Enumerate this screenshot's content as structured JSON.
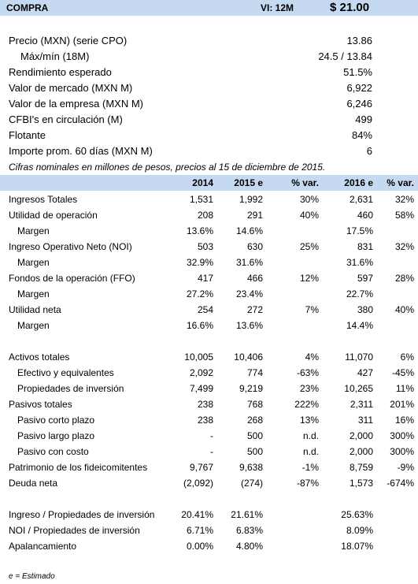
{
  "header": {
    "rating": "COMPRA",
    "vi_label": "VI: 12M",
    "target_price": "$ 21.00"
  },
  "summary": [
    {
      "label": "Precio (MXN) (serie CPO)",
      "value": "13.86",
      "indent": false
    },
    {
      "label": "Máx/mín (18M)",
      "value": "24.5 / 13.84",
      "indent": true
    },
    {
      "label": "Rendimiento esperado",
      "value": "51.5%",
      "indent": false
    },
    {
      "label": "Valor de mercado (MXN M)",
      "value": "6,922",
      "indent": false
    },
    {
      "label": "Valor de la empresa (MXN M)",
      "value": "6,246",
      "indent": false
    },
    {
      "label": "CFBI's en circulación (M)",
      "value": "499",
      "indent": false
    },
    {
      "label": "Flotante",
      "value": "84%",
      "indent": false
    },
    {
      "label": "Importe prom. 60 días (MXN M)",
      "value": "6",
      "indent": false
    }
  ],
  "note": "Cifras nominales en millones de pesos, precios al 15 de diciembre de 2015.",
  "table": {
    "headers": [
      "2014",
      "2015 e",
      "% var.",
      "2016 e",
      "% var."
    ],
    "rows": [
      {
        "label": "Ingresos Totales",
        "indent": false,
        "cells": [
          "1,531",
          "1,992",
          "30%",
          "2,631",
          "32%"
        ]
      },
      {
        "label": "Utilidad de operación",
        "indent": false,
        "cells": [
          "208",
          "291",
          "40%",
          "460",
          "58%"
        ]
      },
      {
        "label": "Margen",
        "indent": true,
        "cells": [
          "13.6%",
          "14.6%",
          "",
          "17.5%",
          ""
        ]
      },
      {
        "label": "Ingreso Operativo Neto (NOI)",
        "indent": false,
        "cells": [
          "503",
          "630",
          "25%",
          "831",
          "32%"
        ]
      },
      {
        "label": "Margen",
        "indent": true,
        "cells": [
          "32.9%",
          "31.6%",
          "",
          "31.6%",
          ""
        ]
      },
      {
        "label": "Fondos de la operación (FFO)",
        "indent": false,
        "cells": [
          "417",
          "466",
          "12%",
          "597",
          "28%"
        ]
      },
      {
        "label": "Margen",
        "indent": true,
        "cells": [
          "27.2%",
          "23.4%",
          "",
          "22.7%",
          ""
        ]
      },
      {
        "label": "Utilidad neta",
        "indent": false,
        "cells": [
          "254",
          "272",
          "7%",
          "380",
          "40%"
        ]
      },
      {
        "label": "Margen",
        "indent": true,
        "cells": [
          "16.6%",
          "13.6%",
          "",
          "14.4%",
          ""
        ]
      },
      {
        "label": "",
        "indent": false,
        "cells": [
          "",
          "",
          "",
          "",
          ""
        ]
      },
      {
        "label": "Activos totales",
        "indent": false,
        "cells": [
          "10,005",
          "10,406",
          "4%",
          "11,070",
          "6%"
        ]
      },
      {
        "label": "Efectivo y equivalentes",
        "indent": true,
        "cells": [
          "2,092",
          "774",
          "-63%",
          "427",
          "-45%"
        ]
      },
      {
        "label": "Propiedades de inversión",
        "indent": true,
        "cells": [
          "7,499",
          "9,219",
          "23%",
          "10,265",
          "11%"
        ]
      },
      {
        "label": "Pasivos totales",
        "indent": false,
        "cells": [
          "238",
          "768",
          "222%",
          "2,311",
          "201%"
        ]
      },
      {
        "label": "Pasivo corto plazo",
        "indent": true,
        "cells": [
          "238",
          "268",
          "13%",
          "311",
          "16%"
        ]
      },
      {
        "label": "Pasivo largo plazo",
        "indent": true,
        "cells": [
          "-",
          "500",
          "n.d.",
          "2,000",
          "300%"
        ]
      },
      {
        "label": "Pasivo con costo",
        "indent": true,
        "cells": [
          "-",
          "500",
          "n.d.",
          "2,000",
          "300%"
        ]
      },
      {
        "label": "Patrimonio de los fideicomitentes",
        "indent": false,
        "cells": [
          "9,767",
          "9,638",
          "-1%",
          "8,759",
          "-9%"
        ]
      },
      {
        "label": "Deuda neta",
        "indent": false,
        "cells": [
          "(2,092)",
          "(274)",
          "-87%",
          "1,573",
          "-674%"
        ]
      },
      {
        "label": "",
        "indent": false,
        "cells": [
          "",
          "",
          "",
          "",
          ""
        ]
      },
      {
        "label": "Ingreso / Propiedades de inversión",
        "indent": false,
        "cells": [
          "20.41%",
          "21.61%",
          "",
          "25.63%",
          ""
        ]
      },
      {
        "label": "NOI / Propiedades de inversión",
        "indent": false,
        "cells": [
          "6.71%",
          "6.83%",
          "",
          "8.09%",
          ""
        ]
      },
      {
        "label": "Apalancamiento",
        "indent": false,
        "cells": [
          "0.00%",
          "4.80%",
          "",
          "18.07%",
          ""
        ]
      }
    ]
  },
  "footnote": "e = Estimado"
}
